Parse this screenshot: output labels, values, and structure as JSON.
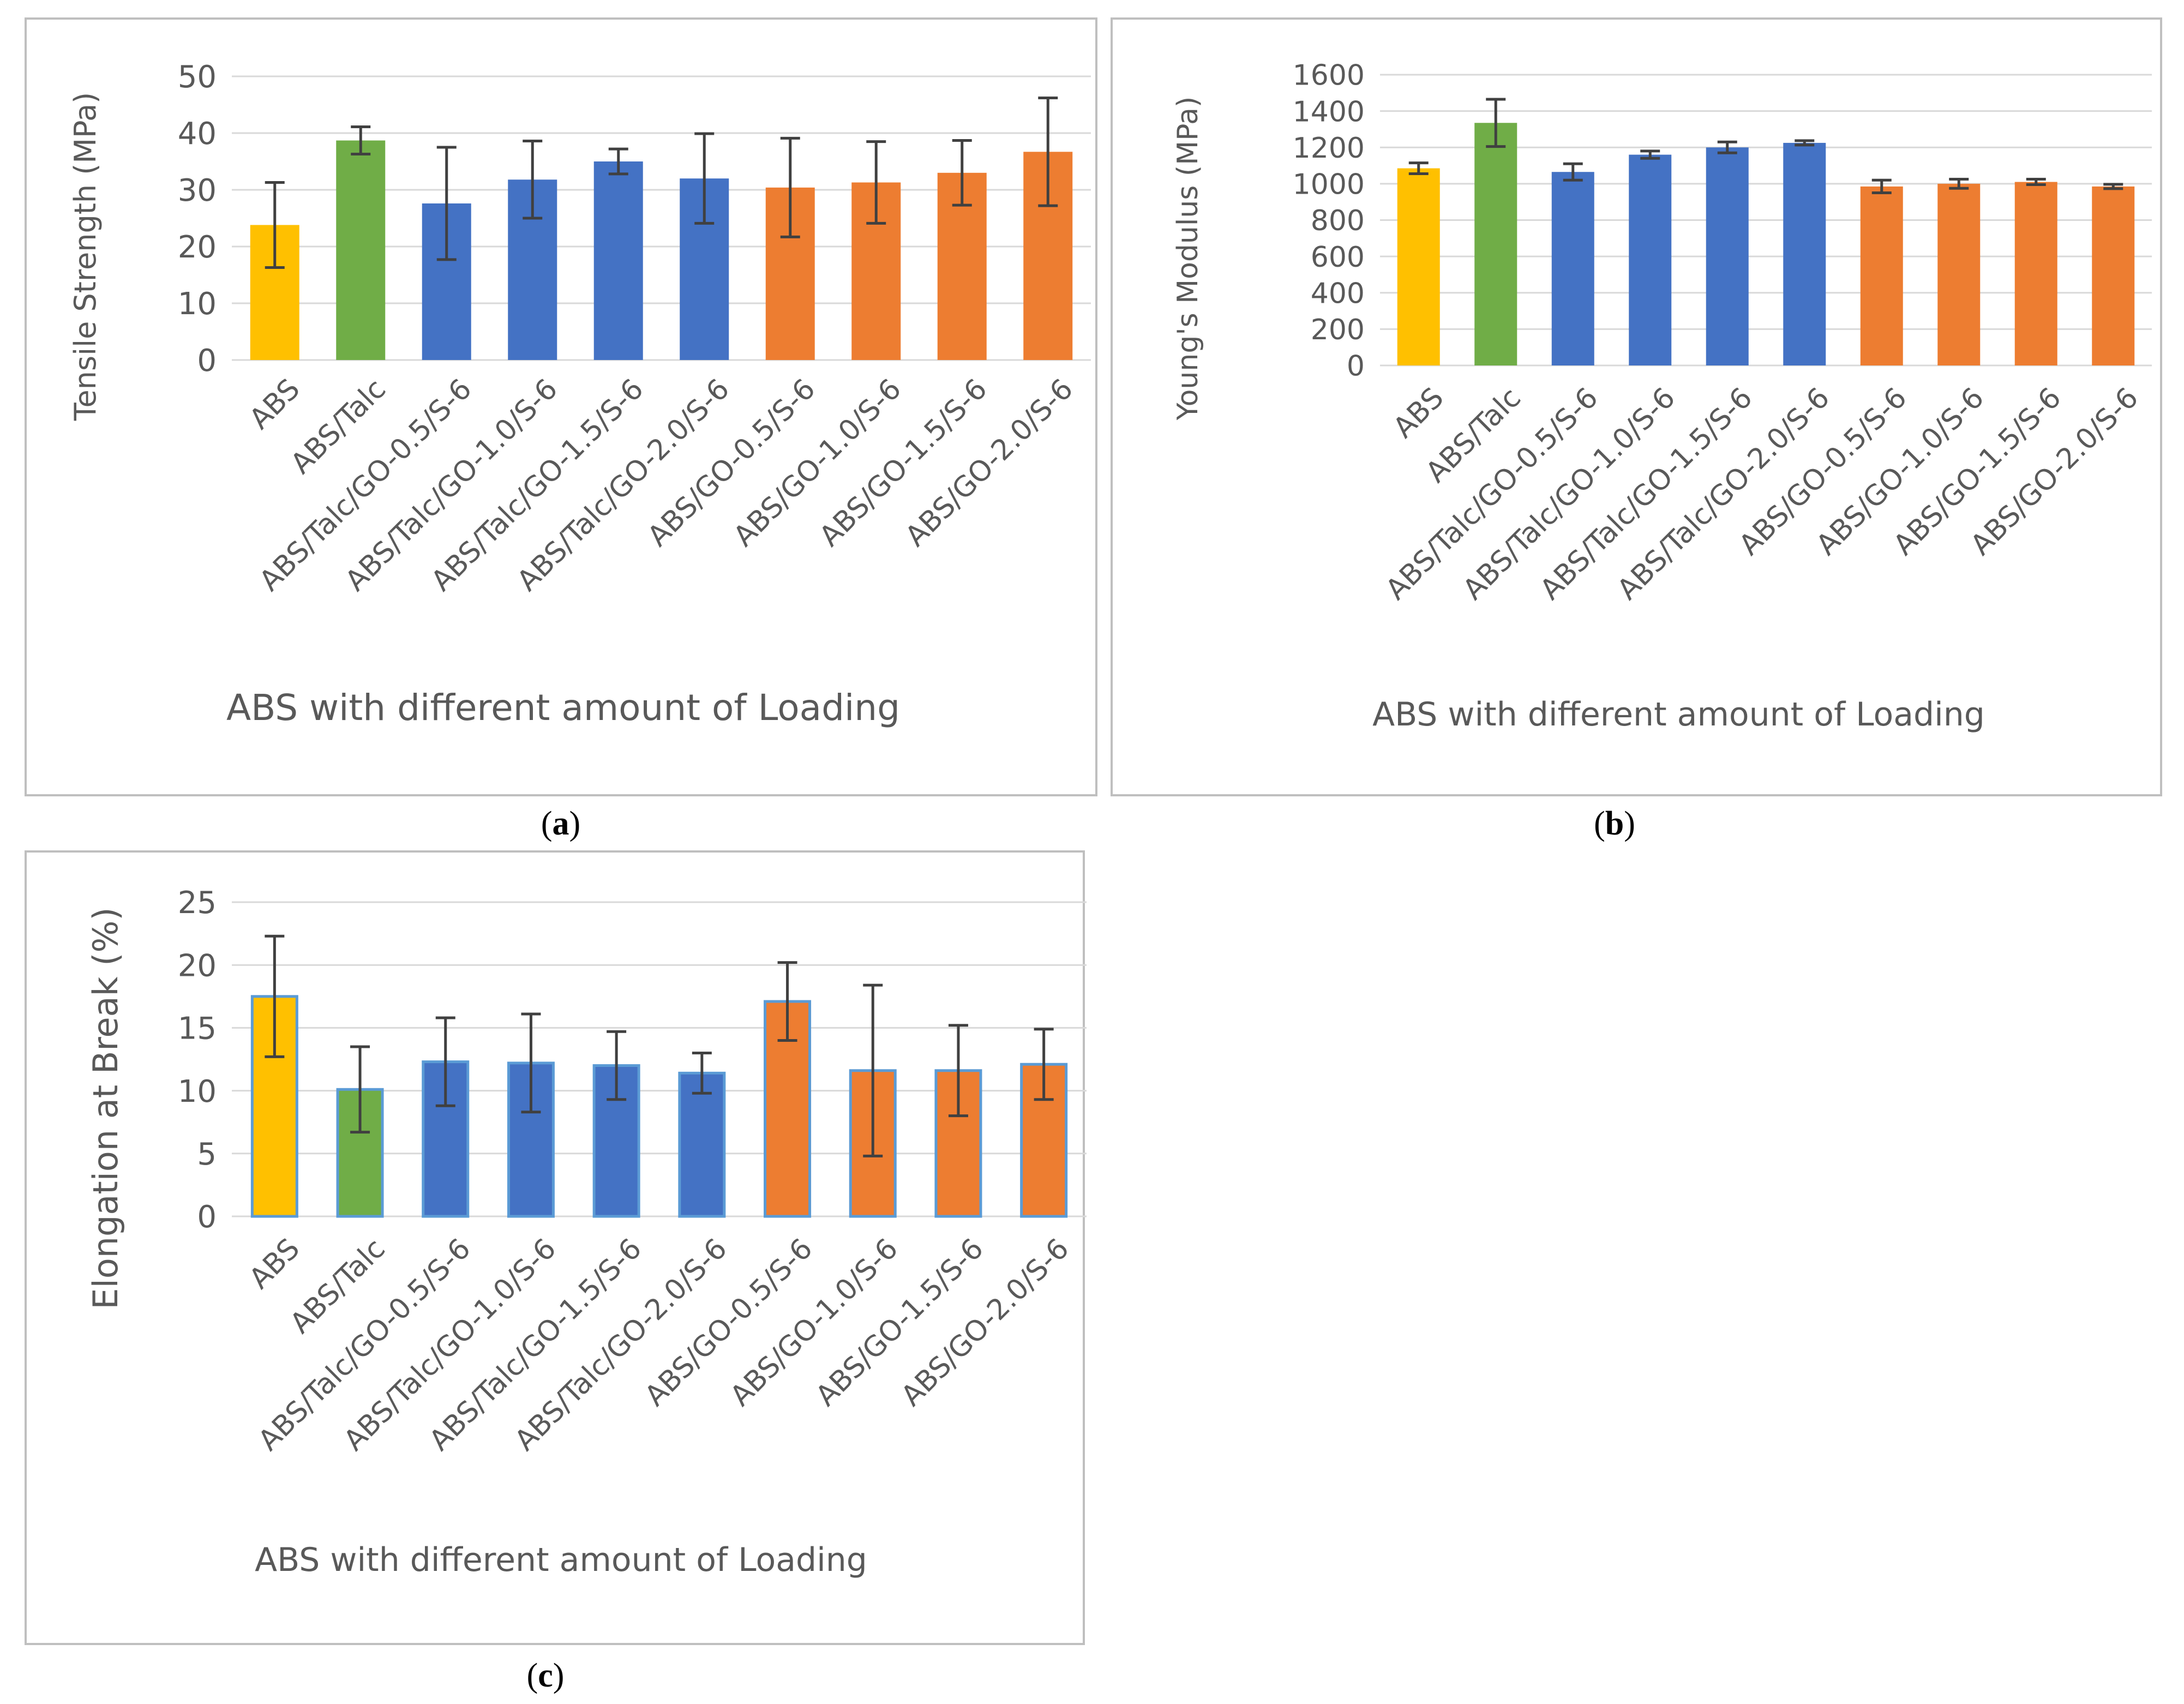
{
  "palette": {
    "abs": "#FFC000",
    "talc": "#70AD47",
    "talc_go": "#4472C4",
    "go": "#ED7D31",
    "grid": "#D9D9D9",
    "frame": "#BFBFBF",
    "errorbar": "#404040",
    "outline_c": "#5B9BD5"
  },
  "panels": {
    "a": "a",
    "b": "b",
    "c": "c"
  },
  "chart_data": [
    {
      "id": "a",
      "type": "bar",
      "title": "",
      "xlabel": "ABS with different amount of Loading",
      "ylabel": "Tensile Strength (MPa)",
      "ylim": [
        0,
        50
      ],
      "yticks": [
        0,
        10,
        20,
        30,
        40,
        50
      ],
      "grid": true,
      "categories": [
        "ABS",
        "ABS/Talc",
        "ABS/Talc/GO-0.5/S-6",
        "ABS/Talc/GO-1.0/S-6",
        "ABS/Talc/GO-1.5/S-6",
        "ABS/Talc/GO-2.0/S-6",
        "ABS/GO-0.5/S-6",
        "ABS/GO-1.0/S-6",
        "ABS/GO-1.5/S-6",
        "ABS/GO-2.0/S-6"
      ],
      "values": [
        23.8,
        38.7,
        27.6,
        31.8,
        35.0,
        32.0,
        30.4,
        31.3,
        33.0,
        36.7
      ],
      "errors": [
        7.5,
        2.4,
        9.9,
        6.8,
        2.2,
        7.9,
        8.7,
        7.2,
        5.7,
        9.5
      ],
      "groups": [
        "abs",
        "talc",
        "talc_go",
        "talc_go",
        "talc_go",
        "talc_go",
        "go",
        "go",
        "go",
        "go"
      ]
    },
    {
      "id": "b",
      "type": "bar",
      "title": "",
      "xlabel": "ABS with different amount of Loading",
      "ylabel": "Young's Modulus (MPa)",
      "ylim": [
        0,
        1600
      ],
      "yticks": [
        0,
        200,
        400,
        600,
        800,
        1000,
        1200,
        1400,
        1600
      ],
      "grid": true,
      "categories": [
        "ABS",
        "ABS/Talc",
        "ABS/Talc/GO-0.5/S-6",
        "ABS/Talc/GO-1.0/S-6",
        "ABS/Talc/GO-1.5/S-6",
        "ABS/Talc/GO-2.0/S-6",
        "ABS/GO-0.5/S-6",
        "ABS/GO-1.0/S-6",
        "ABS/GO-1.5/S-6",
        "ABS/GO-2.0/S-6"
      ],
      "values": [
        1085,
        1335,
        1065,
        1160,
        1200,
        1225,
        985,
        1000,
        1010,
        985
      ],
      "errors": [
        30,
        130,
        45,
        20,
        30,
        12,
        35,
        25,
        15,
        12
      ],
      "groups": [
        "abs",
        "talc",
        "talc_go",
        "talc_go",
        "talc_go",
        "talc_go",
        "go",
        "go",
        "go",
        "go"
      ]
    },
    {
      "id": "c",
      "type": "bar",
      "title": "",
      "xlabel": "ABS with different amount of Loading",
      "ylabel": "Elongation at Break (%)",
      "ylim": [
        0,
        25
      ],
      "yticks": [
        0,
        5,
        10,
        15,
        20,
        25
      ],
      "grid": true,
      "categories": [
        "ABS",
        "ABS/Talc",
        "ABS/Talc/GO-0.5/S-6",
        "ABS/Talc/GO-1.0/S-6",
        "ABS/Talc/GO-1.5/S-6",
        "ABS/Talc/GO-2.0/S-6",
        "ABS/GO-0.5/S-6",
        "ABS/GO-1.0/S-6",
        "ABS/GO-1.5/S-6",
        "ABS/GO-2.0/S-6"
      ],
      "values": [
        17.5,
        10.1,
        12.3,
        12.2,
        12.0,
        11.4,
        17.1,
        11.6,
        11.6,
        12.1
      ],
      "errors": [
        4.8,
        3.4,
        3.5,
        3.9,
        2.7,
        1.6,
        3.1,
        6.8,
        3.6,
        2.8
      ],
      "groups": [
        "abs",
        "talc",
        "talc_go",
        "talc_go",
        "talc_go",
        "talc_go",
        "go",
        "go",
        "go",
        "go"
      ]
    }
  ]
}
